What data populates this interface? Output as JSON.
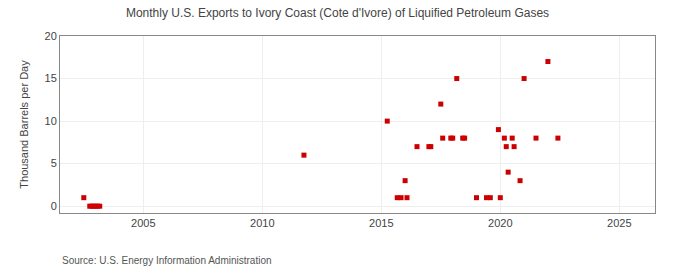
{
  "chart_data": {
    "type": "scatter",
    "title": "Monthly U.S. Exports to Ivory Coast (Cote d'Ivore) of Liquified Petroleum Gases",
    "ylabel": "Thousand Barrels per Day",
    "annotations": [
      "Source: U.S. Energy Information Administration"
    ],
    "x": [
      2002.5,
      2002.75,
      2002.83,
      2002.92,
      2003.0,
      2003.08,
      2003.17,
      2011.75,
      2015.25,
      2015.67,
      2015.83,
      2016.0,
      2016.08,
      2016.5,
      2017.0,
      2017.08,
      2017.5,
      2017.58,
      2017.92,
      2018.0,
      2018.17,
      2018.42,
      2018.5,
      2019.0,
      2019.42,
      2019.58,
      2019.92,
      2020.0,
      2020.17,
      2020.25,
      2020.33,
      2020.5,
      2020.58,
      2020.83,
      2021.0,
      2021.5,
      2022.0,
      2022.42
    ],
    "values": [
      1,
      0,
      0,
      0,
      0,
      0,
      0,
      6,
      10,
      1,
      1,
      3,
      1,
      7,
      7,
      7,
      12,
      8,
      8,
      8,
      15,
      8,
      8,
      1,
      1,
      1,
      9,
      1,
      8,
      7,
      4,
      8,
      7,
      3,
      15,
      8,
      17,
      8
    ],
    "color": "#cc0000",
    "marker": "square",
    "xlim": [
      2001.5,
      2026.5
    ],
    "ylim": [
      -0.8,
      20
    ],
    "xticks": [
      2005,
      2010,
      2015,
      2020,
      2025
    ],
    "yticks": [
      0,
      5,
      10,
      15,
      20
    ],
    "grid": true
  }
}
